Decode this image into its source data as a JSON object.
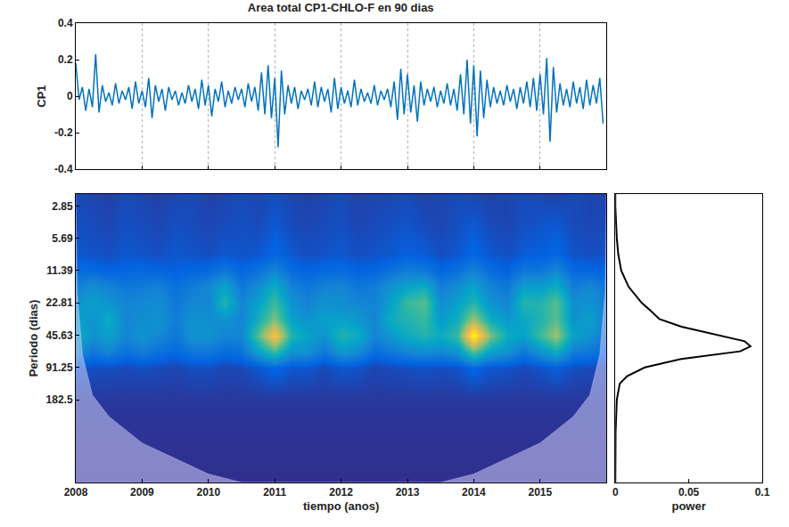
{
  "chart_data": [
    {
      "type": "line",
      "title": "Area total CP1-CHLO-F en 90 dias",
      "y_label": "CP1",
      "x": [
        2008,
        2008.05,
        2008.1,
        2008.15,
        2008.2,
        2008.25,
        2008.3,
        2008.35,
        2008.4,
        2008.45,
        2008.5,
        2008.55,
        2008.6,
        2008.65,
        2008.7,
        2008.75,
        2008.8,
        2008.85,
        2008.9,
        2008.95,
        2009,
        2009.05,
        2009.1,
        2009.15,
        2009.2,
        2009.25,
        2009.3,
        2009.35,
        2009.4,
        2009.45,
        2009.5,
        2009.55,
        2009.6,
        2009.65,
        2009.7,
        2009.75,
        2009.8,
        2009.85,
        2009.9,
        2009.95,
        2010,
        2010.05,
        2010.1,
        2010.15,
        2010.2,
        2010.25,
        2010.3,
        2010.35,
        2010.4,
        2010.45,
        2010.5,
        2010.55,
        2010.6,
        2010.65,
        2010.7,
        2010.75,
        2010.8,
        2010.85,
        2010.9,
        2010.95,
        2011,
        2011.05,
        2011.1,
        2011.15,
        2011.2,
        2011.25,
        2011.3,
        2011.35,
        2011.4,
        2011.45,
        2011.5,
        2011.55,
        2011.6,
        2011.65,
        2011.7,
        2011.75,
        2011.8,
        2011.85,
        2011.9,
        2011.95,
        2012,
        2012.05,
        2012.1,
        2012.15,
        2012.2,
        2012.25,
        2012.3,
        2012.35,
        2012.4,
        2012.45,
        2012.5,
        2012.55,
        2012.6,
        2012.65,
        2012.7,
        2012.75,
        2012.8,
        2012.85,
        2012.9,
        2012.95,
        2013,
        2013.05,
        2013.1,
        2013.15,
        2013.2,
        2013.25,
        2013.3,
        2013.35,
        2013.4,
        2013.45,
        2013.5,
        2013.55,
        2013.6,
        2013.65,
        2013.7,
        2013.75,
        2013.8,
        2013.85,
        2013.9,
        2013.95,
        2014,
        2014.05,
        2014.1,
        2014.15,
        2014.2,
        2014.25,
        2014.3,
        2014.35,
        2014.4,
        2014.45,
        2014.5,
        2014.55,
        2014.6,
        2014.65,
        2014.7,
        2014.75,
        2014.8,
        2014.85,
        2014.9,
        2014.95,
        2015,
        2015.05,
        2015.1,
        2015.15,
        2015.2,
        2015.25,
        2015.3,
        2015.35,
        2015.4,
        2015.45,
        2015.5,
        2015.55,
        2015.6,
        2015.65,
        2015.7,
        2015.75,
        2015.8,
        2015.85,
        2015.9,
        2015.95
      ],
      "values": [
        0.18,
        -0.02,
        0.05,
        -0.08,
        0.04,
        -0.06,
        0.23,
        -0.09,
        0.06,
        -0.03,
        0.02,
        -0.05,
        0.07,
        -0.04,
        0.03,
        -0.02,
        0.05,
        -0.07,
        0.08,
        -0.04,
        0.03,
        -0.06,
        0.1,
        -0.12,
        0.06,
        -0.03,
        0.04,
        -0.08,
        0.05,
        -0.02,
        0.03,
        -0.05,
        0.02,
        -0.04,
        0.06,
        -0.03,
        0.04,
        -0.07,
        0.09,
        -0.05,
        0.06,
        -0.11,
        0.04,
        -0.03,
        0.08,
        -0.06,
        0.03,
        -0.04,
        0.05,
        -0.02,
        0.04,
        -0.06,
        0.07,
        -0.03,
        0.05,
        -0.08,
        0.13,
        -0.1,
        0.17,
        -0.12,
        0.1,
        -0.28,
        0.14,
        -0.1,
        0.06,
        -0.04,
        0.05,
        -0.07,
        0.03,
        -0.02,
        0.04,
        -0.05,
        0.08,
        -0.06,
        0.05,
        -0.03,
        0.04,
        -0.09,
        0.1,
        -0.07,
        0.05,
        -0.04,
        0.03,
        -0.06,
        0.09,
        -0.05,
        0.04,
        -0.03,
        0.02,
        -0.04,
        0.06,
        -0.05,
        0.03,
        -0.02,
        0.04,
        -0.06,
        0.08,
        -0.13,
        0.15,
        -0.1,
        0.12,
        -0.09,
        0.06,
        -0.14,
        0.08,
        -0.05,
        0.04,
        -0.03,
        0.05,
        -0.06,
        0.03,
        -0.04,
        0.07,
        -0.05,
        0.04,
        -0.08,
        0.12,
        -0.1,
        0.2,
        -0.15,
        0.17,
        -0.22,
        0.14,
        -0.12,
        0.09,
        -0.06,
        0.05,
        -0.04,
        0.03,
        -0.05,
        0.06,
        -0.03,
        0.04,
        -0.07,
        0.05,
        -0.04,
        0.08,
        -0.06,
        0.1,
        -0.08,
        0.12,
        -0.1,
        0.21,
        -0.25,
        0.16,
        -0.09,
        0.07,
        -0.05,
        0.04,
        -0.06,
        0.08,
        -0.04,
        0.05,
        -0.07,
        0.09,
        -0.05,
        0.06,
        -0.04,
        0.1,
        -0.15
      ],
      "color": "#0072bd",
      "xlim": [
        2008,
        2016
      ],
      "xticks": [
        2008,
        2009,
        2010,
        2011,
        2012,
        2013,
        2014,
        2015
      ],
      "ylim": [
        -0.4,
        0.4
      ],
      "yticks": [
        -0.4,
        -0.2,
        0,
        0.2,
        0.4
      ],
      "grid": true,
      "tick_labels": "y"
    },
    {
      "type": "heatmap",
      "x_label": "tiempo (anos)",
      "y_label": "Periodo (dias)",
      "x": [
        2008,
        2008.25,
        2008.5,
        2008.75,
        2009,
        2009.25,
        2009.5,
        2009.75,
        2010,
        2010.25,
        2010.5,
        2010.75,
        2011,
        2011.25,
        2011.5,
        2011.75,
        2012,
        2012.25,
        2012.5,
        2012.75,
        2013,
        2013.25,
        2013.5,
        2013.75,
        2014,
        2014.25,
        2014.5,
        2014.75,
        2015,
        2015.25,
        2015.5,
        2015.75,
        2016
      ],
      "y": [
        2.2,
        4.03,
        8.05,
        11.39,
        16.1,
        22.81,
        32.3,
        45.63,
        64.5,
        91.25,
        182.5,
        365,
        1080
      ],
      "z": [
        [
          0.07,
          0.06,
          0.05,
          0.07,
          0.06,
          0.05,
          0.06,
          0.07,
          0.05,
          0.06,
          0.07,
          0.06,
          0.08,
          0.06,
          0.05,
          0.06,
          0.07,
          0.05,
          0.06,
          0.06,
          0.07,
          0.05,
          0.06,
          0.07,
          0.06,
          0.05,
          0.06,
          0.07,
          0.06,
          0.05,
          0.07,
          0.06,
          0.05
        ],
        [
          0.08,
          0.07,
          0.06,
          0.08,
          0.07,
          0.06,
          0.08,
          0.07,
          0.06,
          0.07,
          0.08,
          0.07,
          0.1,
          0.07,
          0.06,
          0.07,
          0.08,
          0.06,
          0.07,
          0.08,
          0.09,
          0.07,
          0.06,
          0.08,
          0.1,
          0.07,
          0.06,
          0.08,
          0.09,
          0.1,
          0.07,
          0.06,
          0.07
        ],
        [
          0.1,
          0.09,
          0.08,
          0.1,
          0.09,
          0.08,
          0.1,
          0.09,
          0.08,
          0.1,
          0.09,
          0.1,
          0.14,
          0.1,
          0.08,
          0.09,
          0.1,
          0.08,
          0.09,
          0.1,
          0.12,
          0.11,
          0.08,
          0.1,
          0.14,
          0.1,
          0.08,
          0.11,
          0.12,
          0.14,
          0.09,
          0.08,
          0.09
        ],
        [
          0.16,
          0.15,
          0.13,
          0.14,
          0.15,
          0.13,
          0.12,
          0.14,
          0.15,
          0.2,
          0.14,
          0.18,
          0.25,
          0.16,
          0.13,
          0.15,
          0.16,
          0.13,
          0.14,
          0.18,
          0.22,
          0.2,
          0.14,
          0.17,
          0.24,
          0.16,
          0.13,
          0.2,
          0.2,
          0.26,
          0.15,
          0.14,
          0.13
        ],
        [
          0.24,
          0.28,
          0.24,
          0.2,
          0.22,
          0.24,
          0.18,
          0.22,
          0.26,
          0.36,
          0.2,
          0.28,
          0.4,
          0.24,
          0.2,
          0.24,
          0.25,
          0.2,
          0.22,
          0.3,
          0.36,
          0.4,
          0.22,
          0.28,
          0.36,
          0.24,
          0.2,
          0.34,
          0.34,
          0.4,
          0.22,
          0.26,
          0.2
        ],
        [
          0.3,
          0.35,
          0.3,
          0.25,
          0.26,
          0.28,
          0.2,
          0.26,
          0.25,
          0.45,
          0.25,
          0.35,
          0.5,
          0.3,
          0.24,
          0.3,
          0.28,
          0.25,
          0.24,
          0.35,
          0.5,
          0.55,
          0.28,
          0.35,
          0.45,
          0.3,
          0.25,
          0.45,
          0.45,
          0.55,
          0.28,
          0.3,
          0.22
        ],
        [
          0.36,
          0.3,
          0.4,
          0.25,
          0.28,
          0.3,
          0.22,
          0.3,
          0.28,
          0.3,
          0.25,
          0.42,
          0.6,
          0.35,
          0.3,
          0.35,
          0.35,
          0.32,
          0.25,
          0.4,
          0.45,
          0.5,
          0.32,
          0.4,
          0.65,
          0.4,
          0.32,
          0.38,
          0.45,
          0.55,
          0.3,
          0.35,
          0.22
        ],
        [
          0.4,
          0.3,
          0.35,
          0.25,
          0.3,
          0.26,
          0.2,
          0.3,
          0.3,
          0.25,
          0.25,
          0.55,
          0.85,
          0.45,
          0.35,
          0.3,
          0.45,
          0.4,
          0.25,
          0.32,
          0.4,
          0.45,
          0.4,
          0.5,
          1.0,
          0.6,
          0.4,
          0.35,
          0.5,
          0.65,
          0.35,
          0.3,
          0.2
        ],
        [
          0.3,
          0.2,
          0.25,
          0.18,
          0.22,
          0.18,
          0.15,
          0.2,
          0.2,
          0.16,
          0.18,
          0.35,
          0.5,
          0.3,
          0.3,
          0.2,
          0.32,
          0.28,
          0.16,
          0.2,
          0.25,
          0.28,
          0.26,
          0.3,
          0.55,
          0.35,
          0.3,
          0.2,
          0.3,
          0.4,
          0.22,
          0.2,
          0.15
        ],
        [
          0.1,
          0.08,
          0.08,
          0.07,
          0.08,
          0.07,
          0.06,
          0.08,
          0.08,
          0.06,
          0.07,
          0.1,
          0.14,
          0.1,
          0.1,
          0.07,
          0.1,
          0.09,
          0.06,
          0.07,
          0.08,
          0.09,
          0.08,
          0.09,
          0.14,
          0.1,
          0.09,
          0.07,
          0.09,
          0.12,
          0.08,
          0.07,
          0.06
        ],
        [
          0.03,
          0.03,
          0.03,
          0.03,
          0.03,
          0.03,
          0.03,
          0.03,
          0.03,
          0.03,
          0.03,
          0.03,
          0.03,
          0.03,
          0.03,
          0.03,
          0.03,
          0.03,
          0.03,
          0.03,
          0.03,
          0.03,
          0.03,
          0.03,
          0.03,
          0.03,
          0.03,
          0.03,
          0.03,
          0.03,
          0.03,
          0.03,
          0.03
        ],
        [
          0.02,
          0.02,
          0.02,
          0.02,
          0.02,
          0.02,
          0.02,
          0.02,
          0.02,
          0.02,
          0.02,
          0.02,
          0.02,
          0.02,
          0.02,
          0.02,
          0.02,
          0.02,
          0.02,
          0.02,
          0.02,
          0.02,
          0.02,
          0.02,
          0.02,
          0.02,
          0.02,
          0.02,
          0.02,
          0.02,
          0.02,
          0.02,
          0.02
        ],
        [
          0.01,
          0.01,
          0.01,
          0.01,
          0.01,
          0.01,
          0.01,
          0.01,
          0.01,
          0.01,
          0.01,
          0.01,
          0.01,
          0.01,
          0.01,
          0.01,
          0.01,
          0.01,
          0.01,
          0.01,
          0.01,
          0.01,
          0.01,
          0.01,
          0.01,
          0.01,
          0.01,
          0.01,
          0.01,
          0.01,
          0.01,
          0.01,
          0.01
        ]
      ],
      "zlim": [
        0,
        1
      ],
      "coi": {
        "x": [
          2008,
          2008.02,
          2008.1,
          2008.25,
          2008.5,
          2009,
          2010,
          2010.5,
          2013.5,
          2014,
          2015,
          2015.5,
          2015.75,
          2015.9,
          2015.98,
          2016
        ],
        "period": [
          2.2,
          18,
          69,
          165,
          262,
          463,
          900,
          1080,
          1080,
          900,
          463,
          262,
          165,
          69,
          18,
          2.2
        ]
      },
      "xlim": [
        2008,
        2016
      ],
      "xticks": [
        2008,
        2009,
        2010,
        2011,
        2012,
        2013,
        2014,
        2015
      ],
      "ylim": [
        1080,
        2.2
      ],
      "yticks": [
        2.85,
        5.69,
        11.39,
        22.81,
        45.63,
        91.25,
        182.5
      ],
      "log": "y"
    },
    {
      "type": "line",
      "x_label": "power",
      "x": [
        0,
        0,
        0.0005,
        0.001,
        0.002,
        0.004,
        0.009,
        0.018,
        0.024,
        0.03,
        0.045,
        0.07,
        0.088,
        0.092,
        0.085,
        0.045,
        0.02,
        0.008,
        0.003,
        0.001,
        0.0002,
        0
      ],
      "y": [
        2.2,
        2.85,
        4.03,
        5.69,
        8.05,
        11.39,
        16.1,
        22.81,
        27,
        32.3,
        38,
        45.63,
        52,
        58,
        64.5,
        76,
        91.25,
        110,
        129,
        182.5,
        365,
        1080
      ],
      "color": "#000000",
      "xlim": [
        0,
        0.1
      ],
      "xticks": [
        0,
        0.05,
        0.1
      ],
      "ylim": [
        1080,
        2.2
      ],
      "log": "y",
      "tick_labels": "x"
    }
  ]
}
